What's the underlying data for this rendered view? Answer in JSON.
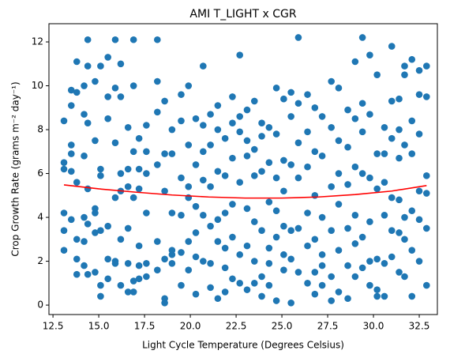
{
  "chart_data": {
    "type": "scatter",
    "title": "AMI T_LIGHT x CGR",
    "xlabel": "Light Cycle Temperature (Degrees Celsius)",
    "ylabel": "Crop Growth Rate (grams m⁻² day⁻¹)",
    "xlim": [
      12.28,
      33.49
    ],
    "ylim": [
      -0.43,
      12.83
    ],
    "xticks": [
      {
        "value": 12.5,
        "label": "12.5"
      },
      {
        "value": 15,
        "label": "15.0"
      },
      {
        "value": 17.5,
        "label": "17.5"
      },
      {
        "value": 20,
        "label": "20.0"
      },
      {
        "value": 22.5,
        "label": "22.5"
      },
      {
        "value": 25,
        "label": "25.0"
      },
      {
        "value": 27.5,
        "label": "27.5"
      },
      {
        "value": 30,
        "label": "30.0"
      },
      {
        "value": 32.5,
        "label": "32.5"
      }
    ],
    "yticks": [
      0,
      2,
      4,
      6,
      8,
      10,
      12
    ],
    "series": [
      {
        "type": "scatter",
        "color": "#1f77b4",
        "x": [
          13.1,
          13.1,
          13.1,
          13.1,
          13.1,
          13.1,
          13.5,
          13.5,
          13.5,
          13.5,
          13.5,
          13.5,
          13.8,
          13.8,
          13.8,
          13.8,
          13.8,
          13.8,
          14.2,
          14.2,
          14.2,
          14.2,
          14.2,
          14.2,
          14.4,
          14.4,
          14.4,
          14.4,
          14.4,
          14.4,
          14.8,
          14.8,
          14.8,
          14.8,
          14.8,
          14.8,
          15.1,
          15.1,
          15.1,
          15.1,
          15.1,
          15.1,
          15.5,
          15.5,
          15.5,
          15.5,
          15.5,
          15.5,
          15.9,
          15.9,
          15.9,
          15.9,
          15.9,
          15.9,
          16.2,
          16.2,
          16.2,
          16.2,
          16.2,
          16.2,
          16.6,
          16.6,
          16.6,
          16.6,
          16.6,
          16.6,
          16.9,
          16.9,
          16.9,
          16.9,
          16.9,
          16.9,
          17.2,
          17.2,
          17.2,
          17.2,
          17.2,
          17.2,
          17.6,
          17.6,
          17.6,
          17.6,
          17.6,
          17.6,
          18.2,
          18.2,
          18.2,
          18.2,
          18.2,
          18.2,
          18.6,
          18.6,
          18.6,
          18.6,
          18.6,
          18.6,
          19.0,
          19.0,
          19.0,
          19.0,
          19.0,
          19.0,
          19.5,
          19.5,
          19.5,
          19.5,
          19.5,
          19.5,
          19.9,
          19.9,
          19.9,
          19.9,
          19.9,
          19.9,
          20.3,
          20.3,
          20.3,
          20.3,
          20.3,
          20.3,
          20.7,
          20.7,
          20.7,
          20.7,
          20.7,
          20.7,
          21.1,
          21.1,
          21.1,
          21.1,
          21.1,
          21.1,
          21.5,
          21.5,
          21.5,
          21.5,
          21.5,
          21.5,
          21.9,
          21.9,
          21.9,
          21.9,
          21.9,
          21.9,
          22.3,
          22.3,
          22.3,
          22.3,
          22.3,
          22.3,
          22.7,
          22.7,
          22.7,
          22.7,
          22.7,
          22.7,
          23.1,
          23.1,
          23.1,
          23.1,
          23.1,
          23.1,
          23.5,
          23.5,
          23.5,
          23.5,
          23.5,
          23.5,
          23.9,
          23.9,
          23.9,
          23.9,
          23.9,
          23.9,
          24.3,
          24.3,
          24.3,
          24.3,
          24.3,
          24.3,
          24.7,
          24.7,
          24.7,
          24.7,
          24.7,
          24.7,
          25.1,
          25.1,
          25.1,
          25.1,
          25.1,
          25.1,
          25.5,
          25.5,
          25.5,
          25.5,
          25.5,
          25.5,
          25.9,
          25.9,
          25.9,
          25.9,
          25.9,
          25.9,
          26.4,
          26.4,
          26.4,
          26.4,
          26.4,
          26.4,
          26.8,
          26.8,
          26.8,
          26.8,
          26.8,
          26.8,
          27.2,
          27.2,
          27.2,
          27.2,
          27.2,
          27.2,
          27.7,
          27.7,
          27.7,
          27.7,
          27.7,
          27.7,
          28.1,
          28.1,
          28.1,
          28.1,
          28.1,
          28.1,
          28.6,
          28.6,
          28.6,
          28.6,
          28.6,
          28.6,
          29.0,
          29.0,
          29.0,
          29.0,
          29.0,
          29.0,
          29.4,
          29.4,
          29.4,
          29.4,
          29.4,
          29.4,
          29.8,
          29.8,
          29.8,
          29.8,
          29.8,
          29.8,
          30.2,
          30.2,
          30.2,
          30.2,
          30.2,
          30.2,
          30.6,
          30.6,
          30.6,
          30.6,
          30.6,
          30.6,
          31.0,
          31.0,
          31.0,
          31.0,
          31.0,
          31.0,
          31.4,
          31.4,
          31.4,
          31.4,
          31.4,
          31.4,
          31.7,
          31.7,
          31.7,
          31.7,
          31.7,
          31.7,
          32.1,
          32.1,
          32.1,
          32.1,
          32.1,
          32.1,
          32.5,
          32.5,
          32.5,
          32.5,
          32.5,
          32.5,
          32.9,
          32.9,
          32.9,
          32.9,
          32.9,
          32.9
        ],
        "values": [
          8.4,
          6.5,
          6.2,
          4.2,
          3.4,
          2.5,
          9.8,
          9.1,
          7.3,
          6.9,
          6.1,
          3.9,
          11.1,
          9.7,
          5.6,
          3.0,
          2.1,
          1.4,
          8.7,
          6.8,
          4.0,
          2.9,
          1.8,
          10.0,
          12.1,
          10.9,
          8.3,
          5.3,
          3.7,
          1.4,
          10.2,
          7.5,
          4.4,
          3.3,
          1.5,
          4.2,
          10.9,
          6.2,
          5.9,
          3.4,
          0.9,
          0.4,
          11.3,
          9.5,
          8.5,
          3.6,
          2.1,
          1.2,
          12.1,
          9.9,
          7.4,
          4.9,
          2.0,
          1.9,
          11.0,
          9.5,
          6.0,
          5.2,
          3.0,
          0.9,
          8.1,
          6.2,
          5.4,
          3.5,
          0.6,
          1.9,
          12.1,
          10.0,
          7.0,
          4.9,
          1.1,
          0.6,
          7.6,
          6.2,
          5.3,
          2.7,
          1.8,
          1.2,
          8.2,
          7.0,
          6.0,
          4.2,
          1.9,
          1.3,
          12.1,
          10.2,
          8.8,
          6.4,
          2.9,
          1.6,
          9.3,
          6.9,
          5.2,
          2.1,
          0.3,
          0.1,
          8.0,
          6.9,
          4.2,
          2.3,
          1.9,
          2.5,
          9.6,
          8.4,
          5.8,
          4.1,
          2.4,
          0.9,
          10.0,
          7.3,
          5.4,
          4.9,
          2.9,
          1.6,
          8.5,
          6.4,
          4.5,
          2.2,
          0.5,
          3.3,
          10.9,
          8.2,
          7.0,
          5.7,
          4.1,
          2.0,
          8.7,
          7.3,
          5.4,
          3.6,
          0.8,
          1.9,
          9.1,
          8.0,
          6.1,
          3.9,
          2.9,
          0.3,
          7.6,
          5.9,
          4.2,
          2.6,
          1.7,
          0.6,
          9.5,
          8.3,
          6.7,
          4.6,
          3.1,
          1.2,
          11.4,
          8.6,
          7.9,
          5.6,
          2.3,
          1.0,
          8.9,
          7.5,
          6.8,
          4.4,
          2.7,
          0.7,
          9.3,
          7.1,
          5.9,
          3.8,
          2.0,
          1.0,
          8.3,
          7.7,
          6.1,
          3.4,
          1.3,
          0.4,
          8.1,
          6.5,
          4.7,
          2.6,
          1.9,
          0.9,
          9.9,
          7.8,
          5.8,
          4.3,
          3.1,
          0.2,
          9.4,
          6.6,
          5.2,
          3.6,
          2.3,
          1.6,
          9.7,
          8.6,
          6.4,
          3.4,
          2.1,
          0.1,
          12.2,
          9.2,
          7.4,
          5.8,
          3.5,
          1.5,
          9.6,
          7.9,
          6.3,
          4.2,
          2.7,
          1.0,
          9.0,
          7.0,
          5.0,
          3.0,
          1.5,
          0.5,
          8.6,
          6.8,
          4.0,
          2.3,
          0.9,
          1.8,
          10.2,
          8.1,
          5.4,
          3.4,
          1.3,
          0.2,
          9.9,
          7.5,
          6.0,
          4.6,
          2.5,
          0.6,
          8.9,
          7.2,
          5.5,
          3.5,
          1.8,
          0.3,
          11.1,
          8.5,
          6.3,
          4.1,
          2.8,
          1.3,
          12.2,
          9.2,
          7.9,
          6.0,
          3.1,
          1.7,
          11.4,
          8.7,
          5.8,
          3.8,
          2.0,
          0.9,
          10.5,
          6.9,
          5.3,
          2.1,
          0.4,
          0.7,
          8.1,
          6.9,
          5.6,
          4.1,
          1.9,
          0.4,
          11.8,
          9.3,
          7.6,
          4.9,
          3.4,
          2.2,
          9.4,
          8.0,
          6.7,
          4.8,
          3.3,
          1.5,
          10.9,
          10.5,
          7.3,
          4.0,
          3.0,
          1.3,
          11.2,
          8.4,
          6.9,
          4.3,
          2.5,
          0.4,
          10.7,
          9.6,
          7.8,
          5.2,
          3.9,
          2.0,
          10.9,
          9.5,
          5.9,
          5.1,
          3.5,
          0.9
        ]
      },
      {
        "type": "line",
        "color": "#ff0000",
        "x": [
          13.1,
          15,
          17,
          19,
          21,
          23,
          25,
          27,
          29,
          31,
          32.9
        ],
        "values": [
          5.48,
          5.3,
          5.15,
          5.02,
          4.93,
          4.88,
          4.88,
          4.93,
          5.04,
          5.2,
          5.45
        ]
      }
    ]
  }
}
